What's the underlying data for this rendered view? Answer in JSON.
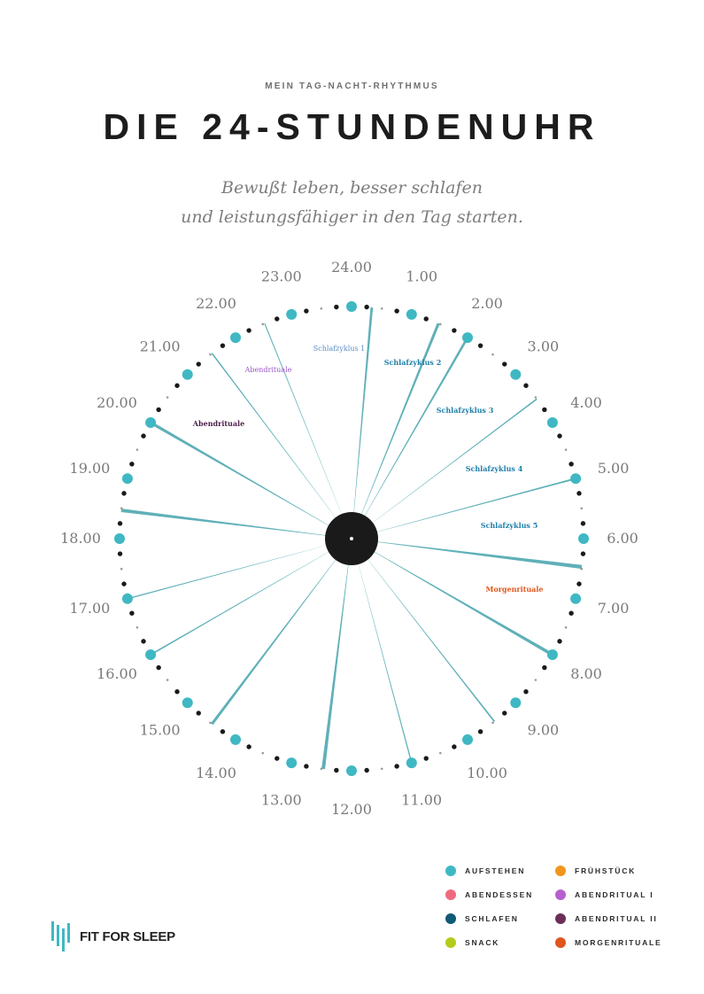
{
  "header": {
    "eyebrow": "MEIN TAG-NACHT-RHYTHMUS",
    "title": "DIE 24-STUNDENUHR",
    "subtitle_line1": "Bewußt leben, besser schlafen",
    "subtitle_line2": "und leistungsfähiger in den Tag starten."
  },
  "clock": {
    "hour_labels": [
      "24.00",
      "1.00",
      "2.00",
      "3.00",
      "4.00",
      "5.00",
      "6.00",
      "7.00",
      "8.00",
      "9.00",
      "10.00",
      "11.00",
      "12.00",
      "13.00",
      "14.00",
      "15.00",
      "16.00",
      "17.00",
      "18.00",
      "19.00",
      "20.00",
      "21.00",
      "22.00",
      "23.00"
    ],
    "annotations": [
      {
        "text": "Schlafzyklus 1",
        "color": "#5b8fc4"
      },
      {
        "text": "Schlafzyklus 2",
        "color": "#1f7fa8"
      },
      {
        "text": "Schlafzyklus 3",
        "color": "#1f7fa8"
      },
      {
        "text": "Schlafzyklus 4",
        "color": "#1f7fa8"
      },
      {
        "text": "Schlafzyklus 5",
        "color": "#1f7fa8"
      },
      {
        "text": "Morgenrituale",
        "color": "#e0571e"
      },
      {
        "text": "Abendrituale",
        "color": "#9b59c7"
      },
      {
        "text": "Abendrituale",
        "color": "#4a1f4a"
      }
    ],
    "colors": {
      "hour_dot": "#3fb8c3",
      "spoke": "#5fb0b8",
      "hub": "#1a1a1a",
      "black_dot": "#1a1a1a",
      "grey_dot": "#9a9a9a"
    }
  },
  "legend": {
    "items": [
      {
        "label": "AUFSTEHEN",
        "color": "#3fb8c3"
      },
      {
        "label": "FRÜHSTÜCK",
        "color": "#f2951c"
      },
      {
        "label": "ABENDESSEN",
        "color": "#ef6a7f"
      },
      {
        "label": "ABENDRITUAL I",
        "color": "#b660cd"
      },
      {
        "label": "SCHLAFEN",
        "color": "#0f5a74"
      },
      {
        "label": "ABENDRITUAL II",
        "color": "#6b2f57"
      },
      {
        "label": "SNACK",
        "color": "#b5cc1c"
      },
      {
        "label": "MORGENRITUALE",
        "color": "#e0541e"
      }
    ]
  },
  "logo": {
    "text": "FIT FOR SLEEP",
    "icon": "fit-for-sleep-bars-icon",
    "color": "#3fb8c3"
  }
}
